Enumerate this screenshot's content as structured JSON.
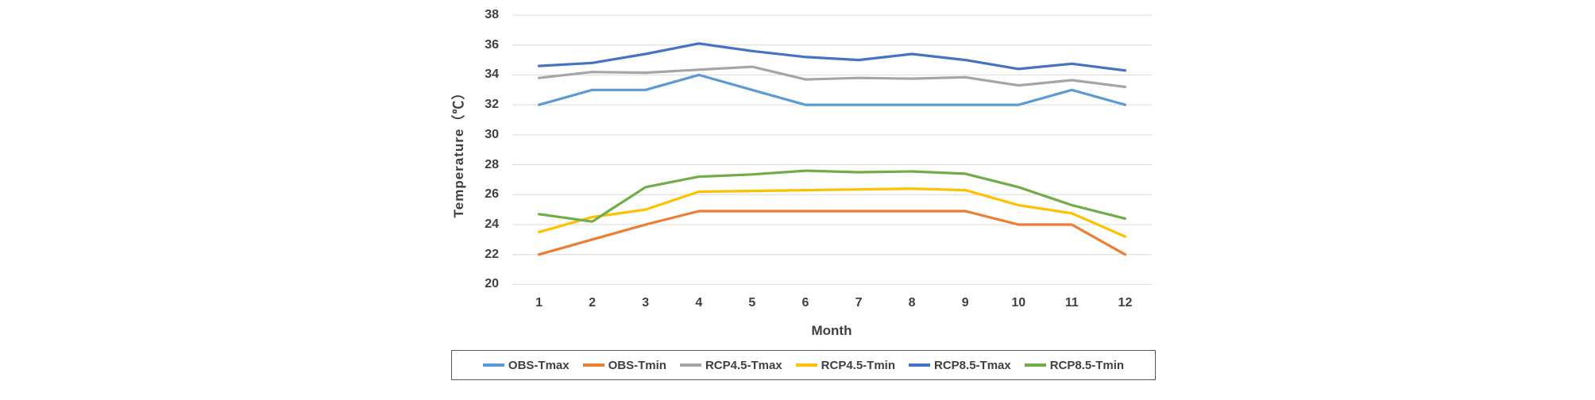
{
  "chart": {
    "y_axis_title": "Temperature（℃）",
    "x_axis_title": "Month"
  },
  "chart_data": {
    "type": "line",
    "title": "",
    "xlabel": "Month",
    "ylabel": "Temperature（℃）",
    "x": [
      1,
      2,
      3,
      4,
      5,
      6,
      7,
      8,
      9,
      10,
      11,
      12
    ],
    "x_tick_labels": [
      "1",
      "2",
      "3",
      "4",
      "5",
      "6",
      "7",
      "8",
      "9",
      "10",
      "11",
      "12"
    ],
    "ylim": [
      20,
      38
    ],
    "y_tick_step": 2,
    "y_tick_labels": [
      "20",
      "22",
      "24",
      "26",
      "28",
      "30",
      "32",
      "34",
      "36",
      "38"
    ],
    "grid": true,
    "gridline_color": "#D9D9D9",
    "legend_position": "bottom",
    "text_color": "#404040",
    "series": [
      {
        "name": "OBS-Tmax",
        "color": "#5B9BD5",
        "values": [
          32,
          33,
          33,
          34,
          33,
          32,
          32,
          32,
          32,
          32,
          33,
          32
        ]
      },
      {
        "name": "OBS-Tmin",
        "color": "#ED7D31",
        "values": [
          22,
          23,
          24,
          24.9,
          24.9,
          24.9,
          24.9,
          24.9,
          24.9,
          24,
          24,
          22
        ]
      },
      {
        "name": "RCP4.5-Tmax",
        "color": "#A5A5A5",
        "values": [
          33.8,
          34.2,
          34.15,
          34.35,
          34.55,
          33.7,
          33.8,
          33.75,
          33.85,
          33.3,
          33.65,
          33.2
        ]
      },
      {
        "name": "RCP4.5-Tmin",
        "color": "#FFC000",
        "values": [
          23.5,
          24.5,
          25.0,
          26.2,
          26.25,
          26.3,
          26.35,
          26.4,
          26.3,
          25.3,
          24.75,
          23.2
        ]
      },
      {
        "name": "RCP8.5-Tmax",
        "color": "#4472C4",
        "values": [
          34.6,
          34.8,
          35.4,
          36.1,
          35.6,
          35.2,
          35.0,
          35.4,
          35.0,
          34.4,
          34.75,
          34.3
        ]
      },
      {
        "name": "RCP8.5-Tmin",
        "color": "#70AD47",
        "values": [
          24.7,
          24.2,
          26.5,
          27.2,
          27.35,
          27.6,
          27.5,
          27.55,
          27.4,
          26.5,
          25.3,
          24.4
        ]
      }
    ]
  }
}
